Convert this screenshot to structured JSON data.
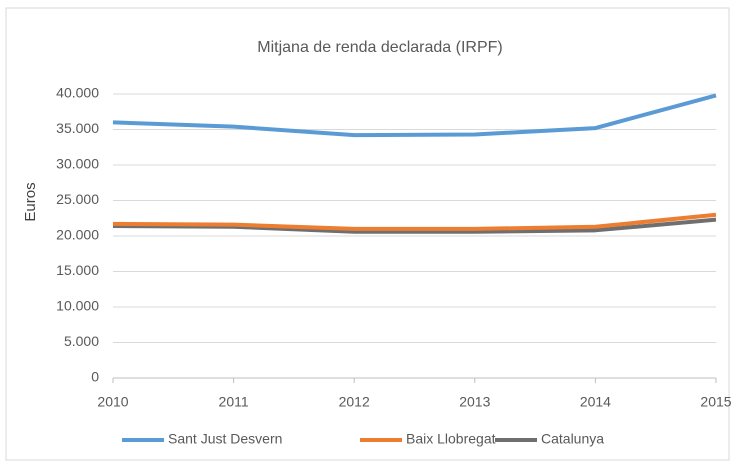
{
  "chart_data": {
    "type": "line",
    "title": "Mitjana de renda declarada (IRPF)",
    "y_label": "Euros",
    "categories": [
      "2010",
      "2011",
      "2012",
      "2013",
      "2014",
      "2015"
    ],
    "series": [
      {
        "name": "Sant Just Desvern",
        "color": "#5b9bd5",
        "values": [
          36000,
          35400,
          34200,
          34300,
          35200,
          39800
        ]
      },
      {
        "name": "Baix Llobregat",
        "color": "#ed7d31",
        "values": [
          21700,
          21600,
          21000,
          21000,
          21300,
          23000
        ]
      },
      {
        "name": "Catalunya",
        "color": "#6f6f6f",
        "values": [
          21400,
          21300,
          20600,
          20600,
          20800,
          22300
        ]
      }
    ],
    "ylim": [
      0,
      40000
    ],
    "yticks": [
      0,
      {
        "value": 5000,
        "label": "5.000"
      },
      {
        "value": 10000,
        "label": "10.000"
      },
      {
        "value": 15000,
        "label": "15.000"
      },
      {
        "value": 20000,
        "label": "20.000"
      },
      {
        "value": 25000,
        "label": "25.000"
      },
      {
        "value": 30000,
        "label": "30.000"
      },
      {
        "value": 35000,
        "label": "35.000"
      },
      {
        "value": 40000,
        "label": "40.000"
      }
    ],
    "grid": true,
    "legend": "bottom"
  }
}
